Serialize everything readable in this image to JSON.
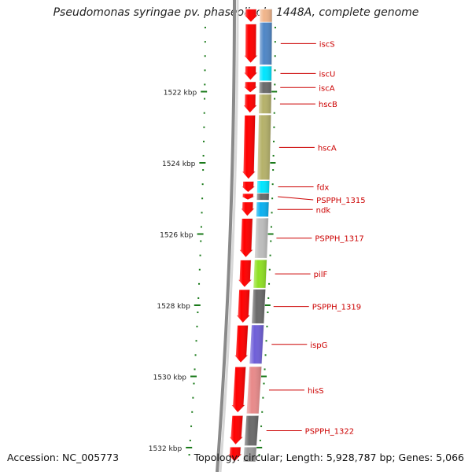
{
  "title": "Pseudomonas syringae pv. phaseolicola 1448A, complete genome",
  "accession": "Accession: NC_005773",
  "topology": "Topology: circular; Length: 5,928,787 bp; Genes: 5,066",
  "scale_labels": [
    {
      "text": "1522 kbp",
      "kbp": 1522
    },
    {
      "text": "1524 kbp",
      "kbp": 1524
    },
    {
      "text": "1526 kbp",
      "kbp": 1526
    },
    {
      "text": "1528 kbp",
      "kbp": 1528
    },
    {
      "text": "1530 kbp",
      "kbp": 1530
    },
    {
      "text": "1532 kbp",
      "kbp": 1532
    }
  ],
  "genes": [
    {
      "name": "",
      "start": 1519.68,
      "end": 1520.05,
      "color": "#f0b48a"
    },
    {
      "name": "iscS",
      "start": 1520.05,
      "end": 1521.25,
      "color": "#4f86c6"
    },
    {
      "name": "iscU",
      "start": 1521.28,
      "end": 1521.7,
      "color": "#00e5ff"
    },
    {
      "name": "iscA",
      "start": 1521.72,
      "end": 1522.05,
      "color": "#6a6a6a"
    },
    {
      "name": "hscB",
      "start": 1522.07,
      "end": 1522.62,
      "color": "#b5b16a"
    },
    {
      "name": "hscA",
      "start": 1522.65,
      "end": 1524.48,
      "color": "#b5b16a"
    },
    {
      "name": "fdx",
      "start": 1524.5,
      "end": 1524.85,
      "color": "#00e5ff"
    },
    {
      "name": "PSPPH_1315",
      "start": 1524.85,
      "end": 1525.05,
      "color": "#6a6a6a"
    },
    {
      "name": "ndk",
      "start": 1525.1,
      "end": 1525.52,
      "color": "#0ab0f0"
    },
    {
      "name": "PSPPH_1317",
      "start": 1525.55,
      "end": 1526.68,
      "color": "#bdbdbd"
    },
    {
      "name": "pilF",
      "start": 1526.72,
      "end": 1527.52,
      "color": "#8fe024"
    },
    {
      "name": "PSPPH_1319",
      "start": 1527.55,
      "end": 1528.52,
      "color": "#6a6a6a"
    },
    {
      "name": "ispG",
      "start": 1528.55,
      "end": 1529.65,
      "color": "#6f5fd8"
    },
    {
      "name": "hisS",
      "start": 1529.72,
      "end": 1531.05,
      "color": "#e88a8a"
    },
    {
      "name": "PSPPH_1322",
      "start": 1531.1,
      "end": 1531.95,
      "color": "#6a6a6a"
    },
    {
      "name": "",
      "start": 1531.98,
      "end": 1532.4,
      "color": "#9a9a9a"
    }
  ],
  "red_arrows": [
    {
      "start": 1519.68,
      "end": 1520.05
    },
    {
      "start": 1520.1,
      "end": 1521.2
    },
    {
      "start": 1521.28,
      "end": 1521.68
    },
    {
      "start": 1521.72,
      "end": 1522.03
    },
    {
      "start": 1522.07,
      "end": 1522.6
    },
    {
      "start": 1522.66,
      "end": 1524.46
    },
    {
      "start": 1524.52,
      "end": 1524.83
    },
    {
      "start": 1524.86,
      "end": 1525.04
    },
    {
      "start": 1525.1,
      "end": 1525.5
    },
    {
      "start": 1525.56,
      "end": 1526.66
    },
    {
      "start": 1526.73,
      "end": 1527.5
    },
    {
      "start": 1527.56,
      "end": 1528.5
    },
    {
      "start": 1528.56,
      "end": 1529.62
    },
    {
      "start": 1529.73,
      "end": 1531.02
    },
    {
      "start": 1531.1,
      "end": 1531.92
    },
    {
      "start": 1531.98,
      "end": 1532.4
    }
  ],
  "colors": {
    "gene_label": "#cc0000",
    "leader_line": "#cc0000",
    "tick": "#1a7a1a",
    "arrow": "#ff0000",
    "backbone": "#8a8a8a"
  }
}
